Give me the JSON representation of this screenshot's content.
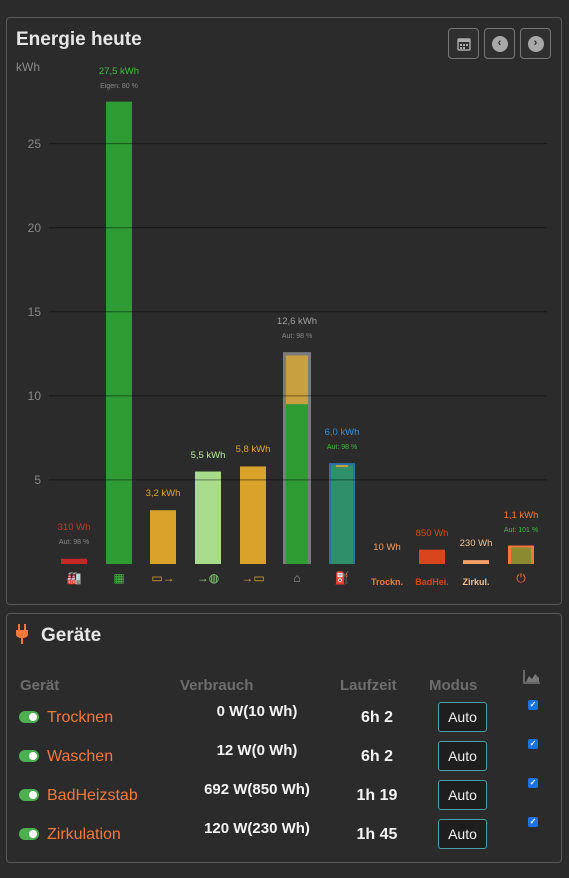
{
  "energy": {
    "title": "Energie heute",
    "unit": "kWh",
    "buttons": {
      "calendar": "calendar-icon",
      "prev": "‹",
      "next": "›"
    },
    "chart_data": {
      "type": "bar",
      "ylabel": "kWh",
      "ylim": [
        0,
        29.5
      ],
      "yticks": [
        "5",
        "10",
        "15",
        "20",
        "25"
      ],
      "bars": [
        {
          "name": "Netzbezug",
          "value": 0.31,
          "label": "310 Wh",
          "sublabel": "Aut: 98 %",
          "color": "#c62828",
          "label_color": "#c0392b",
          "icon": "factory-icon",
          "icon_glyph": "🏭",
          "icon_color": "#c62828"
        },
        {
          "name": "PV",
          "value": 27.5,
          "label": "27,5 kWh",
          "sublabel": "Eigen: 80 %",
          "color": "#2e9b33",
          "label_color": "#3fbf3f",
          "icon": "solar-panel-icon",
          "icon_glyph": "▦",
          "icon_color": "#3fbf3f"
        },
        {
          "name": "Batterie-Entladung",
          "value": 3.2,
          "label": "3,2 kWh",
          "sublabel": "",
          "color": "#d9a22a",
          "label_color": "#e0a82e",
          "icon": "battery-out-icon",
          "icon_glyph": "▭→",
          "icon_color": "#e0a82e"
        },
        {
          "name": "Einspeisung",
          "value": 5.5,
          "label": "5,5 kWh",
          "sublabel": "",
          "color": "#a8dc8c",
          "label_color": "#b8ec9a",
          "icon": "grid-export-icon",
          "icon_glyph": "→◍",
          "icon_color": "#8fd77a"
        },
        {
          "name": "Batterie-Ladung",
          "value": 5.8,
          "label": "5,8 kWh",
          "sublabel": "",
          "color": "#d9a22a",
          "label_color": "#e0a82e",
          "icon": "battery-in-icon",
          "icon_glyph": "→▭",
          "icon_color": "#e0a82e"
        },
        {
          "name": "Haus",
          "value": 12.6,
          "label": "12,6 kWh",
          "sublabel": "Aut: 98 %",
          "color": "#808080",
          "label_color": "#a0a0a0",
          "icon": "house-icon",
          "icon_glyph": "⌂",
          "icon_color": "#a0a0a0"
        },
        {
          "name": "Wallbox",
          "value": 6.0,
          "label": "6,0 kWh",
          "sublabel": "Aut: 98 %",
          "color": "#2e6fb0",
          "label_color": "#3a8fd8",
          "icon": "ev-charger-icon",
          "icon_glyph": "⛽",
          "icon_color": "#3a8fd8"
        },
        {
          "name": "Trockn.",
          "value": 0.01,
          "label": "10 Wh",
          "sublabel": "",
          "color": "#f4793b",
          "label_color": "#f0a060",
          "icon": "",
          "xtext": "Trockn.",
          "xtext_color": "#f4793b"
        },
        {
          "name": "BadHei.",
          "value": 0.85,
          "label": "850 Wh",
          "sublabel": "",
          "color": "#d9461e",
          "label_color": "#d9461e",
          "icon": "",
          "xtext": "BadHei.",
          "xtext_color": "#d9461e"
        },
        {
          "name": "Zirkul.",
          "value": 0.23,
          "label": "230 Wh",
          "sublabel": "",
          "color": "#f4a064",
          "label_color": "#f4c090",
          "icon": "",
          "xtext": "Zirkul.",
          "xtext_color": "#f4c090"
        },
        {
          "name": "Geräte",
          "value": 1.1,
          "label": "1,1 kWh",
          "sublabel": "Aut: 101 %",
          "color": "#f4793b",
          "label_color": "#f4793b",
          "icon": "plug-icon",
          "icon_glyph": "⏻",
          "icon_color": "#f4793b"
        }
      ]
    }
  },
  "devices": {
    "title": "Geräte",
    "headers": {
      "device": "Gerät",
      "usage": "Verbrauch",
      "runtime": "Laufzeit",
      "mode": "Modus"
    },
    "rows": [
      {
        "name": "Trocknen",
        "usage": "0 W(10 Wh)",
        "runtime": "6h 2",
        "mode": "Auto",
        "enabled": true,
        "checked": true
      },
      {
        "name": "Waschen",
        "usage": "12 W(0 Wh)",
        "runtime": "6h 2",
        "mode": "Auto",
        "enabled": true,
        "checked": true
      },
      {
        "name": "BadHeizstab",
        "usage": "692 W(850 Wh)",
        "runtime": "1h 19",
        "mode": "Auto",
        "enabled": true,
        "checked": true
      },
      {
        "name": "Zirkulation",
        "usage": "120 W(230 Wh)",
        "runtime": "1h 45",
        "mode": "Auto",
        "enabled": true,
        "checked": true
      }
    ]
  }
}
